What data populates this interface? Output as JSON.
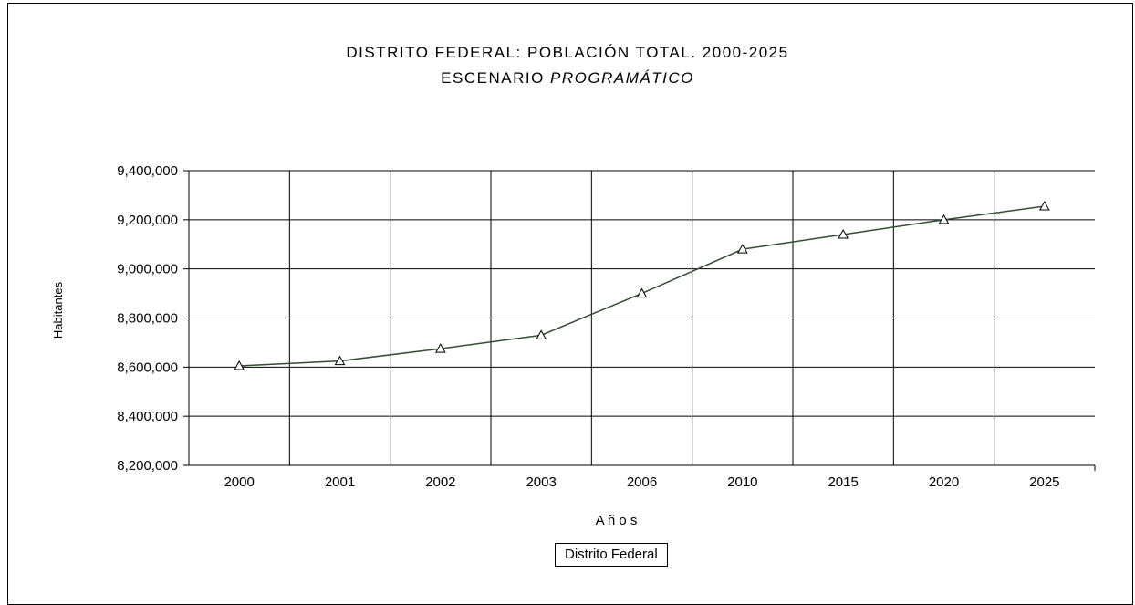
{
  "title_line1": "DISTRITO FEDERAL: POBLACIÓN TOTAL.  2000-2025",
  "title_line2_plain": "ESCENARIO",
  "title_line2_italic": "PROGRAMÁTICO",
  "chart_data": {
    "type": "line",
    "title": "DISTRITO FEDERAL: POBLACIÓN TOTAL.  2000-2025 ESCENARIO PROGRAMÁTICO",
    "xlabel": "A ñ o s",
    "ylabel": "Habitantes",
    "categories": [
      "2000",
      "2001",
      "2002",
      "2003",
      "2006",
      "2010",
      "2015",
      "2020",
      "2025"
    ],
    "series": [
      {
        "name": "Distrito Federal",
        "values": [
          8605000,
          8625000,
          8675000,
          8730000,
          8900000,
          9080000,
          9140000,
          9200000,
          9255000
        ],
        "color": "#2f4f2f",
        "marker": "triangle"
      }
    ],
    "ylim": [
      8200000,
      9400000
    ],
    "yticks": [
      8200000,
      8400000,
      8600000,
      8800000,
      9000000,
      9200000,
      9400000
    ],
    "ytick_labels": [
      "8,200,000",
      "8,400,000",
      "8,600,000",
      "8,800,000",
      "9,000,000",
      "9,200,000",
      "9,400,000"
    ],
    "grid": true,
    "legend": "bottom"
  }
}
